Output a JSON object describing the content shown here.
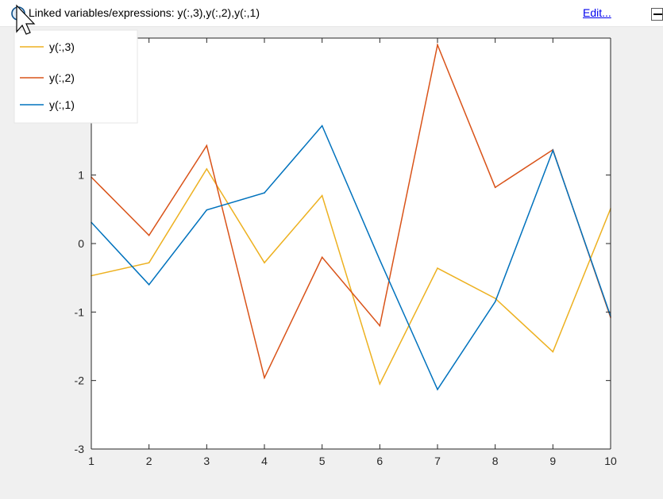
{
  "link_bar": {
    "icon": "linked-variables-info-icon",
    "text": "Linked variables/expressions: y(:,3),y(:,2),y(:,1)",
    "edit_label": "Edit...",
    "collapse_icon": "collapse-icon"
  },
  "chart_data": {
    "type": "line",
    "title": "",
    "xlabel": "",
    "ylabel": "",
    "x": [
      1,
      2,
      3,
      4,
      5,
      6,
      7,
      8,
      9,
      10
    ],
    "xlim": [
      1,
      10
    ],
    "ylim": [
      -3,
      3
    ],
    "xticks": [
      1,
      2,
      3,
      4,
      5,
      6,
      7,
      8,
      9,
      10
    ],
    "yticks": [
      -3,
      -2,
      -1,
      0,
      1
    ],
    "grid": false,
    "legend": {
      "placement": "top-left",
      "entries": [
        "y(:,3)",
        "y(:,2)",
        "y(:,1)"
      ]
    },
    "series": [
      {
        "name": "y(:,3)",
        "color": "#edb120",
        "values": [
          -0.47,
          -0.28,
          1.09,
          -0.28,
          0.7,
          -2.05,
          -0.36,
          -0.8,
          -1.58,
          0.51
        ]
      },
      {
        "name": "y(:,2)",
        "color": "#d95319",
        "values": [
          0.97,
          0.12,
          1.43,
          -1.96,
          -0.2,
          -1.2,
          2.9,
          0.82,
          1.37,
          -1.08
        ]
      },
      {
        "name": "y(:,1)",
        "color": "#0072bd",
        "values": [
          0.31,
          -0.6,
          0.49,
          0.74,
          1.72,
          -0.24,
          -2.13,
          -0.85,
          1.36,
          -1.06
        ]
      }
    ]
  }
}
